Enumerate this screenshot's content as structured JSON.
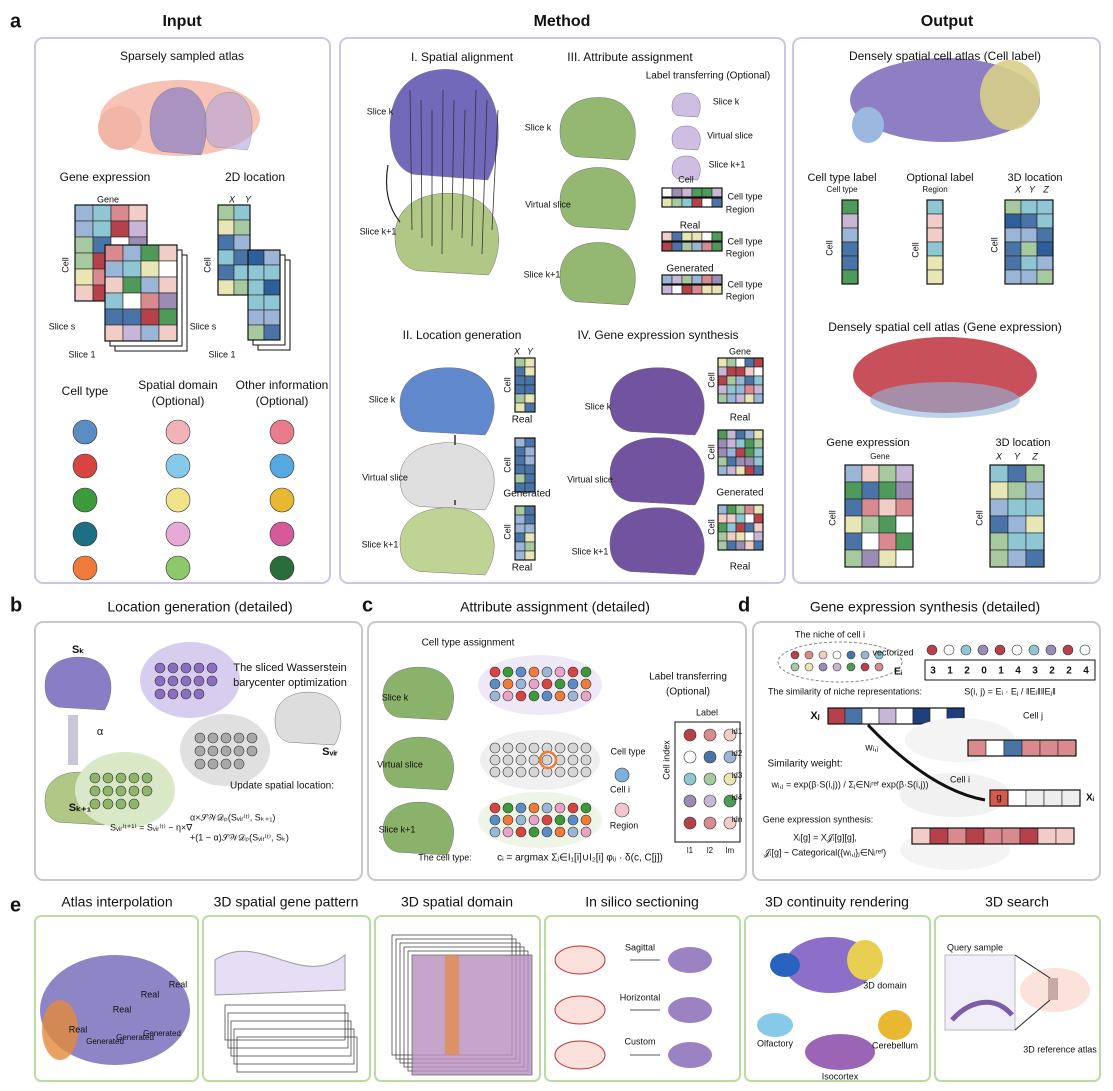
{
  "panel_labels": [
    "a",
    "b",
    "c",
    "d",
    "e"
  ],
  "a": {
    "headers": [
      "Input",
      "Method",
      "Output"
    ],
    "input": [
      "Sparsely sampled atlas",
      "Gene expression",
      "Gene",
      "Cell",
      "2D location",
      "X",
      "Y",
      "Slice s",
      "Slice 1",
      "Slice s",
      "Slice 1",
      "Cell",
      "Cell type",
      "Spatial domain",
      "(Optional)",
      "Other information",
      "(Optional)"
    ],
    "method": [
      "I. Spatial alignment",
      "Slice k",
      "Slice k+1",
      "III. Attribute assignment",
      "Label transferring (Optional)",
      "Slice k",
      "Virtual slice",
      "Slice k+1",
      "Slice k",
      "Virtual slice",
      "Slice k+1",
      "Cell",
      "Cell type",
      "Region",
      "Real",
      "Cell type",
      "Region",
      "Generated",
      "Cell type",
      "Region",
      "II. Location generation",
      "X",
      "Y",
      "Cell",
      "Real",
      "Cell",
      "Generated",
      "Cell",
      "Real",
      "Slice k",
      "Virtual slice",
      "Slice k+1",
      "IV. Gene expression synthesis",
      "Gene",
      "Cell",
      "Real",
      "Cell",
      "Generated",
      "Cell",
      "Real",
      "Slice k",
      "Virtual slice",
      "Slice k+1"
    ],
    "output": [
      "Densely spatial cell atlas (Cell label)",
      "Cell type label",
      "Cell type",
      "Cell",
      "Optional label",
      "Region",
      "Cell",
      "3D location",
      "X",
      "Y",
      "Z",
      "Cell",
      "Densely spatial cell atlas (Gene expression)",
      "Gene expression",
      "Gene",
      "Cell",
      "3D location",
      "X",
      "Y",
      "Z",
      "Cell"
    ]
  },
  "b": [
    "Location generation (detailed)",
    "Sₖ",
    "α",
    "Sₖ₊₁",
    "The sliced Wasserstein",
    "barycenter optimization",
    "Sᵥᵢᵣ",
    "Update spatial location:",
    "Sᵥᵢᵣ⁽ᵗ⁺¹⁾ = Sᵥᵢᵣ⁽ᵗ⁾ − η×∇",
    "α×𝒮𝒲𝒟ₚ(Sᵥᵢᵣ⁽ᵗ⁾, Sₖ₊₁)",
    "+(1 − α)𝒮𝒲𝒟ₚ(Sᵥᵢᵣ⁽ᵗ⁾, Sₖ)"
  ],
  "c": [
    "Attribute assignment (detailed)",
    "Cell type assignment",
    "Slice k",
    "Virtual slice",
    "Slice k+1",
    "Cell type",
    "Cell i",
    "Region",
    "Label transferring",
    "(Optional)",
    "Label",
    "Cell index",
    "id1",
    "id2",
    "id3",
    "id4",
    "idn",
    "l1",
    "l2",
    "lm",
    "The cell type:",
    "cᵢ = argmax Σⱼ∈I₁[i]∪I₂[i] φᵢⱼ · δ(c, C[j])"
  ],
  "d": {
    "texts": [
      "Gene expression synthesis (detailed)",
      "The niche of cell i",
      "vectorized",
      "Eᵢ",
      "The similarity of niche representations:",
      "S(i, j) = Eᵢ · Eⱼ / ‖Eᵢ‖‖Eⱼ‖",
      "Xⱼ",
      "Cell j",
      "wᵢ,ⱼ",
      "Similarity weight:",
      "wᵢ,ⱼ = exp(β·S(i,j)) / Σⱼ∈Nᵢʳᵉᶠ exp(β·S(i,j))",
      "Cell i",
      "g",
      "Xᵢ",
      "Gene expression synthesis:",
      "Xᵢ[g] = X𝒥ᵢ[g][g],",
      "𝒥ᵢ[g] ~ Categorical({wᵢ,ⱼ}ⱼ∈Nᵢʳᵉᶠ)"
    ],
    "vector": [
      3,
      1,
      2,
      0,
      1,
      4,
      3,
      2,
      2,
      4
    ]
  },
  "e": {
    "titles": [
      "Atlas interpolation",
      "3D spatial gene pattern",
      "3D spatial domain",
      "In silico sectioning",
      "3D continuity rendering",
      "3D search"
    ],
    "labels": [
      "Real",
      "Real",
      "Real",
      "Real",
      "Generated",
      "Generated",
      "Generated",
      "Sagittal",
      "Horizontal",
      "Custom",
      "3D domain",
      "Olfactory",
      "Cerebellum",
      "Isocortex",
      "Query sample",
      "3D reference atlas"
    ]
  }
}
